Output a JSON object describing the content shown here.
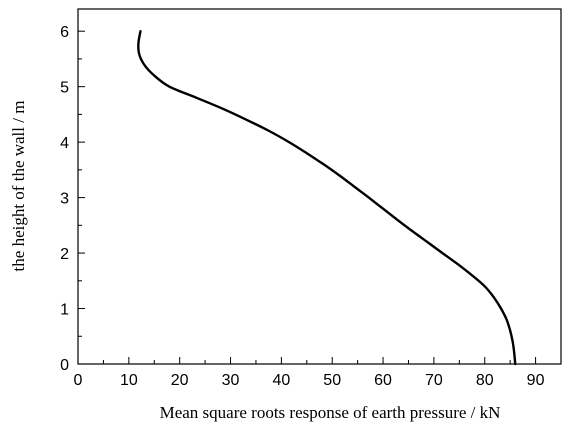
{
  "chart_data": {
    "type": "line",
    "title": "",
    "xlabel": "Mean square roots response of earth pressure / kN",
    "ylabel": "the height of the wall / m",
    "xlim": [
      0,
      95
    ],
    "ylim": [
      0,
      6.4
    ],
    "xticks": [
      0,
      10,
      20,
      30,
      40,
      50,
      60,
      70,
      80,
      90
    ],
    "yticks": [
      0,
      1,
      2,
      3,
      4,
      5,
      6
    ],
    "grid": false,
    "legend": "none",
    "series": [
      {
        "color": "#000000",
        "points": [
          [
            86.0,
            0.0
          ],
          [
            85.8,
            0.2
          ],
          [
            85.5,
            0.4
          ],
          [
            85.0,
            0.6
          ],
          [
            84.3,
            0.8
          ],
          [
            83.2,
            1.0
          ],
          [
            81.8,
            1.2
          ],
          [
            80.0,
            1.4
          ],
          [
            77.5,
            1.6
          ],
          [
            74.7,
            1.8
          ],
          [
            71.7,
            2.0
          ],
          [
            68.7,
            2.2
          ],
          [
            65.7,
            2.4
          ],
          [
            62.8,
            2.6
          ],
          [
            60.0,
            2.8
          ],
          [
            57.2,
            3.0
          ],
          [
            54.3,
            3.2
          ],
          [
            51.4,
            3.4
          ],
          [
            48.3,
            3.6
          ],
          [
            45.0,
            3.8
          ],
          [
            41.5,
            4.0
          ],
          [
            37.6,
            4.2
          ],
          [
            33.2,
            4.4
          ],
          [
            28.5,
            4.6
          ],
          [
            23.3,
            4.8
          ],
          [
            18.0,
            5.0
          ],
          [
            15.0,
            5.2
          ],
          [
            13.0,
            5.4
          ],
          [
            12.0,
            5.6
          ],
          [
            11.9,
            5.8
          ],
          [
            12.3,
            6.0
          ]
        ]
      }
    ]
  }
}
